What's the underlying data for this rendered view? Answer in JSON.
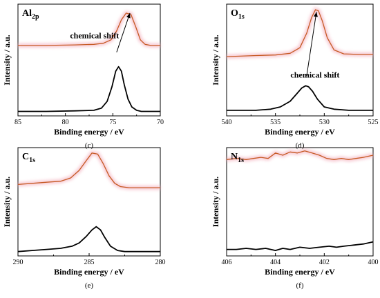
{
  "chart_data": [
    {
      "type": "line",
      "panel": "Al2p",
      "label_main": "Al",
      "label_sub": "2p",
      "caption": "(c)",
      "xlabel": "Binding energy / eV",
      "ylabel": "Intensity / a.u.",
      "xlim": [
        85,
        70
      ],
      "ylim": [
        0,
        1
      ],
      "x_ticks": [
        85,
        80,
        75,
        70
      ],
      "annotation": "chemical shift",
      "arrow": {
        "from": [
          74.6,
          0.57
        ],
        "to": [
          73.2,
          0.92
        ]
      },
      "series": [
        {
          "color": "#c65a24",
          "glow": true,
          "x": [
            85,
            82,
            79,
            77,
            76,
            75.2,
            74.6,
            74.1,
            73.6,
            73.1,
            72.6,
            72.1,
            71.6,
            71,
            70
          ],
          "y": [
            0.63,
            0.63,
            0.635,
            0.64,
            0.65,
            0.68,
            0.76,
            0.86,
            0.92,
            0.91,
            0.8,
            0.68,
            0.64,
            0.63,
            0.63
          ]
        },
        {
          "color": "#000000",
          "glow": false,
          "x": [
            85,
            82,
            79,
            77,
            76.2,
            75.6,
            75.1,
            74.7,
            74.4,
            74.1,
            73.8,
            73.4,
            73.0,
            72.5,
            72,
            71,
            70
          ],
          "y": [
            0.04,
            0.04,
            0.045,
            0.05,
            0.07,
            0.13,
            0.26,
            0.4,
            0.44,
            0.4,
            0.28,
            0.15,
            0.08,
            0.05,
            0.04,
            0.04,
            0.04
          ]
        }
      ]
    },
    {
      "type": "line",
      "panel": "O1s",
      "label_main": "O",
      "label_sub": "1s",
      "caption": "(d)",
      "xlabel": "Binding energy / eV",
      "ylabel": "Intensity / a.u.",
      "xlim": [
        540,
        525
      ],
      "ylim": [
        0,
        1
      ],
      "x_ticks": [
        540,
        535,
        530,
        525
      ],
      "annotation": "chemical shift",
      "arrow": {
        "from": [
          531.8,
          0.36
        ],
        "to": [
          530.8,
          0.93
        ]
      },
      "series": [
        {
          "color": "#c65a24",
          "glow": true,
          "x": [
            540,
            537,
            535,
            533.5,
            532.5,
            531.8,
            531.3,
            530.9,
            530.6,
            530.2,
            529.7,
            529,
            528,
            526.5,
            525
          ],
          "y": [
            0.53,
            0.54,
            0.545,
            0.56,
            0.61,
            0.74,
            0.88,
            0.95,
            0.94,
            0.85,
            0.7,
            0.59,
            0.555,
            0.55,
            0.55
          ]
        },
        {
          "color": "#000000",
          "glow": false,
          "x": [
            540,
            537,
            535.5,
            534.5,
            533.5,
            532.8,
            532.3,
            531.9,
            531.6,
            531.2,
            530.7,
            530,
            529,
            527.5,
            525
          ],
          "y": [
            0.05,
            0.05,
            0.06,
            0.08,
            0.13,
            0.2,
            0.25,
            0.27,
            0.26,
            0.22,
            0.15,
            0.08,
            0.06,
            0.05,
            0.05
          ]
        }
      ]
    },
    {
      "type": "line",
      "panel": "C1s",
      "label_main": "C",
      "label_sub": "1s",
      "caption": "(e)",
      "xlabel": "Binding energy / eV",
      "ylabel": "Intensity / a.u.",
      "xlim": [
        290,
        280
      ],
      "ylim": [
        0,
        1
      ],
      "x_ticks": [
        290,
        285,
        280
      ],
      "series": [
        {
          "color": "#c65a24",
          "glow": true,
          "x": [
            290,
            289,
            288,
            287,
            286.3,
            285.7,
            285.2,
            284.8,
            284.4,
            284.0,
            283.6,
            283.2,
            282.8,
            282.2,
            281,
            280
          ],
          "y": [
            0.66,
            0.67,
            0.68,
            0.69,
            0.72,
            0.79,
            0.88,
            0.95,
            0.94,
            0.85,
            0.74,
            0.67,
            0.64,
            0.63,
            0.63,
            0.63
          ]
        },
        {
          "color": "#000000",
          "glow": false,
          "x": [
            290,
            289,
            288,
            287,
            286.2,
            285.7,
            285.2,
            284.8,
            284.5,
            284.2,
            283.9,
            283.5,
            283,
            282.5,
            281.5,
            280
          ],
          "y": [
            0.04,
            0.05,
            0.06,
            0.07,
            0.09,
            0.12,
            0.18,
            0.24,
            0.27,
            0.24,
            0.17,
            0.09,
            0.05,
            0.04,
            0.04,
            0.04
          ]
        }
      ]
    },
    {
      "type": "line",
      "panel": "N1s",
      "label_main": "N",
      "label_sub": "1s",
      "caption": "(f)",
      "xlabel": "Binding energy / eV",
      "ylabel": "Intensity / a.u.",
      "xlim": [
        406,
        400
      ],
      "ylim": [
        0,
        1
      ],
      "x_ticks": [
        406,
        404,
        402,
        400
      ],
      "series": [
        {
          "color": "#c65a24",
          "glow": true,
          "x": [
            406,
            405.6,
            405.2,
            404.9,
            404.6,
            404.3,
            404.0,
            403.7,
            403.4,
            403.1,
            402.8,
            402.5,
            402.2,
            401.9,
            401.6,
            401.3,
            401.0,
            400.7,
            400.4,
            400
          ],
          "y": [
            0.89,
            0.9,
            0.89,
            0.9,
            0.91,
            0.9,
            0.95,
            0.93,
            0.96,
            0.95,
            0.97,
            0.95,
            0.93,
            0.9,
            0.89,
            0.9,
            0.89,
            0.9,
            0.91,
            0.93
          ]
        },
        {
          "color": "#000000",
          "glow": false,
          "x": [
            406,
            405.6,
            405.2,
            404.8,
            404.4,
            404.0,
            403.7,
            403.4,
            403.0,
            402.6,
            402.2,
            401.8,
            401.5,
            401.2,
            400.8,
            400.4,
            400
          ],
          "y": [
            0.06,
            0.06,
            0.07,
            0.06,
            0.07,
            0.05,
            0.07,
            0.06,
            0.08,
            0.07,
            0.08,
            0.09,
            0.08,
            0.09,
            0.1,
            0.11,
            0.13
          ]
        }
      ]
    }
  ]
}
